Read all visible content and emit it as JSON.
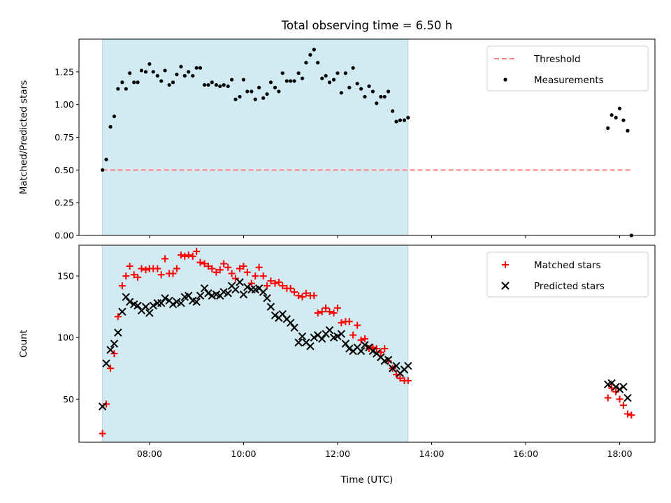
{
  "chart_data": [
    {
      "type": "scatter",
      "panel": "top",
      "title": "Total observing time = 6.50 h",
      "ylabel": "Matched/Predicted stars",
      "xlabel": "",
      "x_unit": "hour of day (UTC)",
      "xlim": [
        6.5,
        18.75
      ],
      "ylim": [
        0,
        1.5
      ],
      "yticks": [
        0,
        0.25,
        0.5,
        0.75,
        1.0,
        1.25
      ],
      "ytick_labels": [
        "0.00",
        "0.25",
        "0.50",
        "0.75",
        "1.00",
        "1.25"
      ],
      "xticks": [
        8,
        10,
        12,
        14,
        16,
        18
      ],
      "xtick_labels": [
        "",
        "",
        "",
        "",
        "",
        ""
      ],
      "shaded_span": {
        "x": [
          7.0,
          13.5
        ],
        "color": "#add8e6"
      },
      "threshold": {
        "name": "Threshold",
        "value": 0.5,
        "x": [
          7.0,
          18.25
        ],
        "color": "#ff8080",
        "style": "dashed"
      },
      "legend": {
        "placement": "top-right",
        "entries": [
          "Threshold",
          "Measurements"
        ]
      },
      "series": [
        {
          "name": "Measurements",
          "marker": "dot",
          "color": "#000000",
          "x": [
            7.0,
            7.08,
            7.17,
            7.25,
            7.33,
            7.42,
            7.5,
            7.58,
            7.67,
            7.75,
            7.83,
            7.92,
            8.0,
            8.08,
            8.17,
            8.25,
            8.33,
            8.42,
            8.5,
            8.58,
            8.67,
            8.75,
            8.83,
            8.92,
            9.0,
            9.08,
            9.17,
            9.25,
            9.33,
            9.42,
            9.5,
            9.58,
            9.67,
            9.75,
            9.83,
            9.92,
            10.0,
            10.08,
            10.17,
            10.25,
            10.33,
            10.42,
            10.5,
            10.58,
            10.67,
            10.75,
            10.83,
            10.92,
            11.0,
            11.08,
            11.17,
            11.25,
            11.33,
            11.42,
            11.5,
            11.58,
            11.67,
            11.75,
            11.83,
            11.92,
            12.0,
            12.08,
            12.17,
            12.25,
            12.33,
            12.42,
            12.5,
            12.58,
            12.67,
            12.75,
            12.83,
            12.92,
            13.0,
            13.08,
            13.17,
            13.25,
            13.33,
            13.42,
            13.5,
            17.75,
            17.83,
            17.92,
            18.0,
            18.08,
            18.17,
            18.25
          ],
          "y": [
            0.5,
            0.58,
            0.83,
            0.91,
            1.12,
            1.17,
            1.12,
            1.24,
            1.17,
            1.17,
            1.26,
            1.25,
            1.31,
            1.25,
            1.22,
            1.18,
            1.26,
            1.15,
            1.17,
            1.23,
            1.29,
            1.22,
            1.25,
            1.22,
            1.28,
            1.28,
            1.15,
            1.15,
            1.17,
            1.15,
            1.14,
            1.15,
            1.14,
            1.19,
            1.04,
            1.06,
            1.19,
            1.1,
            1.1,
            1.04,
            1.13,
            1.05,
            1.08,
            1.17,
            1.13,
            1.1,
            1.24,
            1.18,
            1.18,
            1.18,
            1.24,
            1.2,
            1.32,
            1.38,
            1.42,
            1.32,
            1.2,
            1.22,
            1.17,
            1.19,
            1.24,
            1.09,
            1.24,
            1.13,
            1.28,
            1.16,
            1.12,
            1.06,
            1.14,
            1.1,
            1.01,
            1.06,
            1.06,
            1.1,
            0.95,
            0.87,
            0.88,
            0.88,
            0.9,
            0.82,
            0.92,
            0.9,
            0.97,
            0.88,
            0.8,
            0.0
          ]
        }
      ]
    },
    {
      "type": "scatter",
      "panel": "bottom",
      "title": "",
      "ylabel": "Count",
      "xlabel": "Time (UTC)",
      "xlim": [
        6.5,
        18.75
      ],
      "ylim": [
        15,
        175
      ],
      "yticks": [
        50,
        100,
        150
      ],
      "ytick_labels": [
        "50",
        "100",
        "150"
      ],
      "xticks": [
        8,
        10,
        12,
        14,
        16,
        18
      ],
      "xtick_labels": [
        "08:00",
        "10:00",
        "12:00",
        "14:00",
        "16:00",
        "18:00"
      ],
      "shaded_span": {
        "x": [
          7.0,
          13.5
        ],
        "color": "#add8e6"
      },
      "legend": {
        "placement": "top-right",
        "entries": [
          "Matched stars",
          "Predicted stars"
        ]
      },
      "series": [
        {
          "name": "Matched stars",
          "marker": "plus",
          "color": "#ff0000",
          "x": [
            7.0,
            7.08,
            7.17,
            7.25,
            7.33,
            7.42,
            7.5,
            7.58,
            7.67,
            7.75,
            7.83,
            7.92,
            8.0,
            8.08,
            8.17,
            8.25,
            8.33,
            8.42,
            8.5,
            8.58,
            8.67,
            8.75,
            8.83,
            8.92,
            9.0,
            9.08,
            9.17,
            9.25,
            9.33,
            9.42,
            9.5,
            9.58,
            9.67,
            9.75,
            9.83,
            9.92,
            10.0,
            10.08,
            10.17,
            10.25,
            10.33,
            10.42,
            10.5,
            10.58,
            10.67,
            10.75,
            10.83,
            10.92,
            11.0,
            11.08,
            11.17,
            11.25,
            11.33,
            11.42,
            11.5,
            11.58,
            11.67,
            11.75,
            11.83,
            11.92,
            12.0,
            12.08,
            12.17,
            12.25,
            12.33,
            12.42,
            12.5,
            12.58,
            12.67,
            12.75,
            12.83,
            12.92,
            13.0,
            13.08,
            13.17,
            13.25,
            13.33,
            13.42,
            13.5,
            17.75,
            17.83,
            17.92,
            18.0,
            18.08,
            18.17,
            18.25
          ],
          "y": [
            22,
            46,
            75,
            87,
            117,
            142,
            150,
            158,
            151,
            149,
            156,
            155,
            156,
            156,
            156,
            151,
            164,
            152,
            152,
            156,
            167,
            166,
            167,
            166,
            170,
            161,
            160,
            158,
            156,
            153,
            155,
            160,
            157,
            152,
            148,
            156,
            158,
            153,
            144,
            150,
            157,
            150,
            142,
            146,
            144,
            145,
            142,
            140,
            140,
            137,
            134,
            133,
            136,
            134,
            134,
            120,
            121,
            124,
            121,
            120,
            124,
            112,
            113,
            113,
            102,
            110,
            98,
            99,
            91,
            92,
            91,
            88,
            91,
            81,
            75,
            70,
            67,
            65,
            65,
            51,
            59,
            56,
            50,
            45,
            38,
            37
          ]
        },
        {
          "name": "Predicted stars",
          "marker": "x",
          "color": "#000000",
          "x": [
            7.0,
            7.08,
            7.17,
            7.25,
            7.33,
            7.42,
            7.5,
            7.58,
            7.67,
            7.75,
            7.83,
            7.92,
            8.0,
            8.08,
            8.17,
            8.25,
            8.33,
            8.42,
            8.5,
            8.58,
            8.67,
            8.75,
            8.83,
            8.92,
            9.0,
            9.08,
            9.17,
            9.25,
            9.33,
            9.42,
            9.5,
            9.58,
            9.67,
            9.75,
            9.83,
            9.92,
            10.0,
            10.08,
            10.17,
            10.25,
            10.33,
            10.42,
            10.5,
            10.58,
            10.67,
            10.75,
            10.83,
            10.92,
            11.0,
            11.08,
            11.17,
            11.25,
            11.33,
            11.42,
            11.5,
            11.58,
            11.67,
            11.75,
            11.83,
            11.92,
            12.0,
            12.08,
            12.17,
            12.25,
            12.33,
            12.42,
            12.5,
            12.58,
            12.67,
            12.75,
            12.83,
            12.92,
            13.0,
            13.08,
            13.17,
            13.25,
            13.33,
            13.42,
            13.5,
            17.75,
            17.83,
            17.92,
            18.0,
            18.08,
            18.17
          ],
          "y": [
            44,
            79,
            90,
            95,
            104,
            121,
            133,
            129,
            127,
            126,
            122,
            125,
            120,
            126,
            128,
            128,
            132,
            130,
            127,
            129,
            128,
            133,
            134,
            130,
            129,
            134,
            140,
            136,
            134,
            135,
            134,
            137,
            136,
            142,
            139,
            145,
            135,
            141,
            139,
            139,
            140,
            137,
            132,
            125,
            118,
            116,
            119,
            115,
            112,
            108,
            96,
            101,
            96,
            93,
            100,
            102,
            99,
            103,
            106,
            100,
            101,
            103,
            95,
            91,
            89,
            92,
            89,
            94,
            92,
            89,
            87,
            84,
            81,
            82,
            75,
            77,
            71,
            74,
            77,
            62,
            63,
            60,
            58,
            60,
            51
          ]
        }
      ]
    }
  ]
}
